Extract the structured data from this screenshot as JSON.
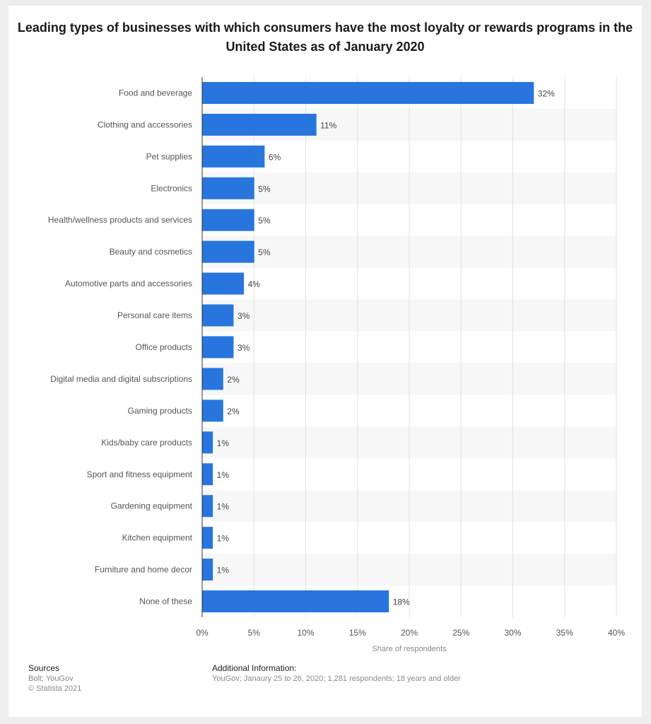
{
  "chart_data": {
    "type": "bar",
    "orientation": "horizontal",
    "title": "Leading types of businesses with which consumers have the most loyalty or rewards programs in the United States as of January 2020",
    "xlabel": "Share of respondents",
    "ylabel": "",
    "xlim": [
      0,
      40
    ],
    "x_ticks": [
      "0%",
      "5%",
      "10%",
      "15%",
      "20%",
      "25%",
      "30%",
      "35%",
      "40%"
    ],
    "categories": [
      "Food and beverage",
      "Clothing and accessories",
      "Pet supplies",
      "Electronics",
      "Health/wellness products and services",
      "Beauty and cosmetics",
      "Automotive parts and accessories",
      "Personal care items",
      "Office products",
      "Digital media and digital subscriptions",
      "Gaming products",
      "Kids/baby care products",
      "Sport and fitness equipment",
      "Gardening equipment",
      "Kitchen equipment",
      "Furniture and home decor",
      "None of these"
    ],
    "values": [
      32,
      11,
      6,
      5,
      5,
      5,
      4,
      3,
      3,
      2,
      2,
      1,
      1,
      1,
      1,
      1,
      18
    ],
    "value_labels": [
      "32%",
      "11%",
      "6%",
      "5%",
      "5%",
      "5%",
      "4%",
      "3%",
      "3%",
      "2%",
      "2%",
      "1%",
      "1%",
      "1%",
      "1%",
      "1%",
      "18%"
    ],
    "bar_color": "#2876dd",
    "grid": true
  },
  "footer": {
    "sources_title": "Sources",
    "sources_lines": [
      "Bolt; YouGov",
      "© Statista 2021"
    ],
    "info_title": "Additional Information:",
    "info_text": "YouGov; Janaury 25 to 26, 2020; 1,281 respondents; 18 years and older"
  }
}
